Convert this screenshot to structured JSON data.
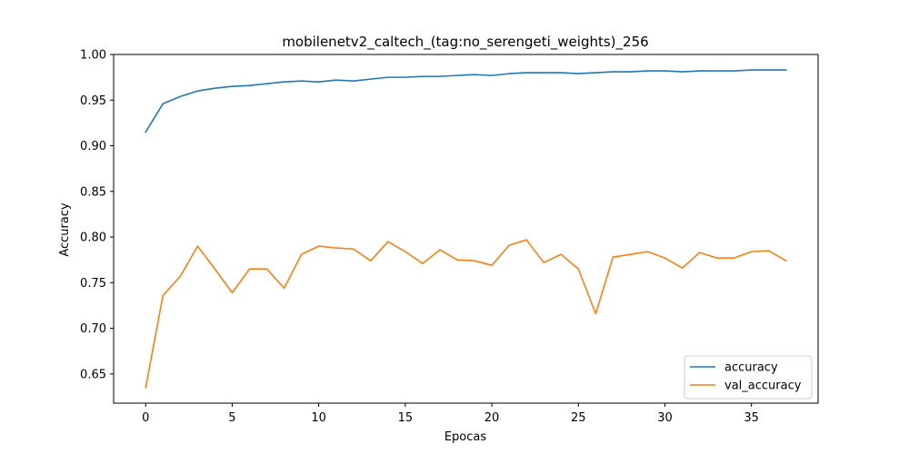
{
  "chart_data": {
    "type": "line",
    "title": "mobilenetv2_caltech_(tag:no_serengeti_weights)_256",
    "xlabel": "Epocas",
    "ylabel": "Accuracy",
    "xlim": [
      -1.85,
      38.85
    ],
    "ylim": [
      0.618,
      1.0
    ],
    "xticks": [
      0,
      5,
      10,
      15,
      20,
      25,
      30,
      35
    ],
    "xtick_labels": [
      "0",
      "5",
      "10",
      "15",
      "20",
      "25",
      "30",
      "35"
    ],
    "yticks": [
      0.65,
      0.7,
      0.75,
      0.8,
      0.85,
      0.9,
      0.95,
      1.0
    ],
    "ytick_labels": [
      "0.65",
      "0.70",
      "0.75",
      "0.80",
      "0.85",
      "0.90",
      "0.95",
      "1.00"
    ],
    "grid": false,
    "legend_position": "lower-right",
    "x": [
      0,
      1,
      2,
      3,
      4,
      5,
      6,
      7,
      8,
      9,
      10,
      11,
      12,
      13,
      14,
      15,
      16,
      17,
      18,
      19,
      20,
      21,
      22,
      23,
      24,
      25,
      26,
      27,
      28,
      29,
      30,
      31,
      32,
      33,
      34,
      35,
      36,
      37
    ],
    "series": [
      {
        "name": "accuracy",
        "color": "#1f77b4",
        "values": [
          0.915,
          0.946,
          0.954,
          0.96,
          0.963,
          0.965,
          0.966,
          0.968,
          0.97,
          0.971,
          0.97,
          0.972,
          0.971,
          0.973,
          0.975,
          0.975,
          0.976,
          0.976,
          0.977,
          0.978,
          0.977,
          0.979,
          0.98,
          0.98,
          0.98,
          0.979,
          0.98,
          0.981,
          0.981,
          0.982,
          0.982,
          0.981,
          0.982,
          0.982,
          0.982,
          0.983,
          0.983,
          0.983
        ]
      },
      {
        "name": "val_accuracy",
        "color": "#ff7f0e",
        "values": [
          0.635,
          0.736,
          0.757,
          0.79,
          0.765,
          0.739,
          0.765,
          0.765,
          0.744,
          0.781,
          0.79,
          0.788,
          0.787,
          0.774,
          0.795,
          0.784,
          0.771,
          0.786,
          0.775,
          0.774,
          0.769,
          0.791,
          0.797,
          0.772,
          0.781,
          0.765,
          0.716,
          0.778,
          0.781,
          0.784,
          0.777,
          0.766,
          0.783,
          0.777,
          0.777,
          0.784,
          0.785,
          0.774
        ]
      }
    ]
  }
}
